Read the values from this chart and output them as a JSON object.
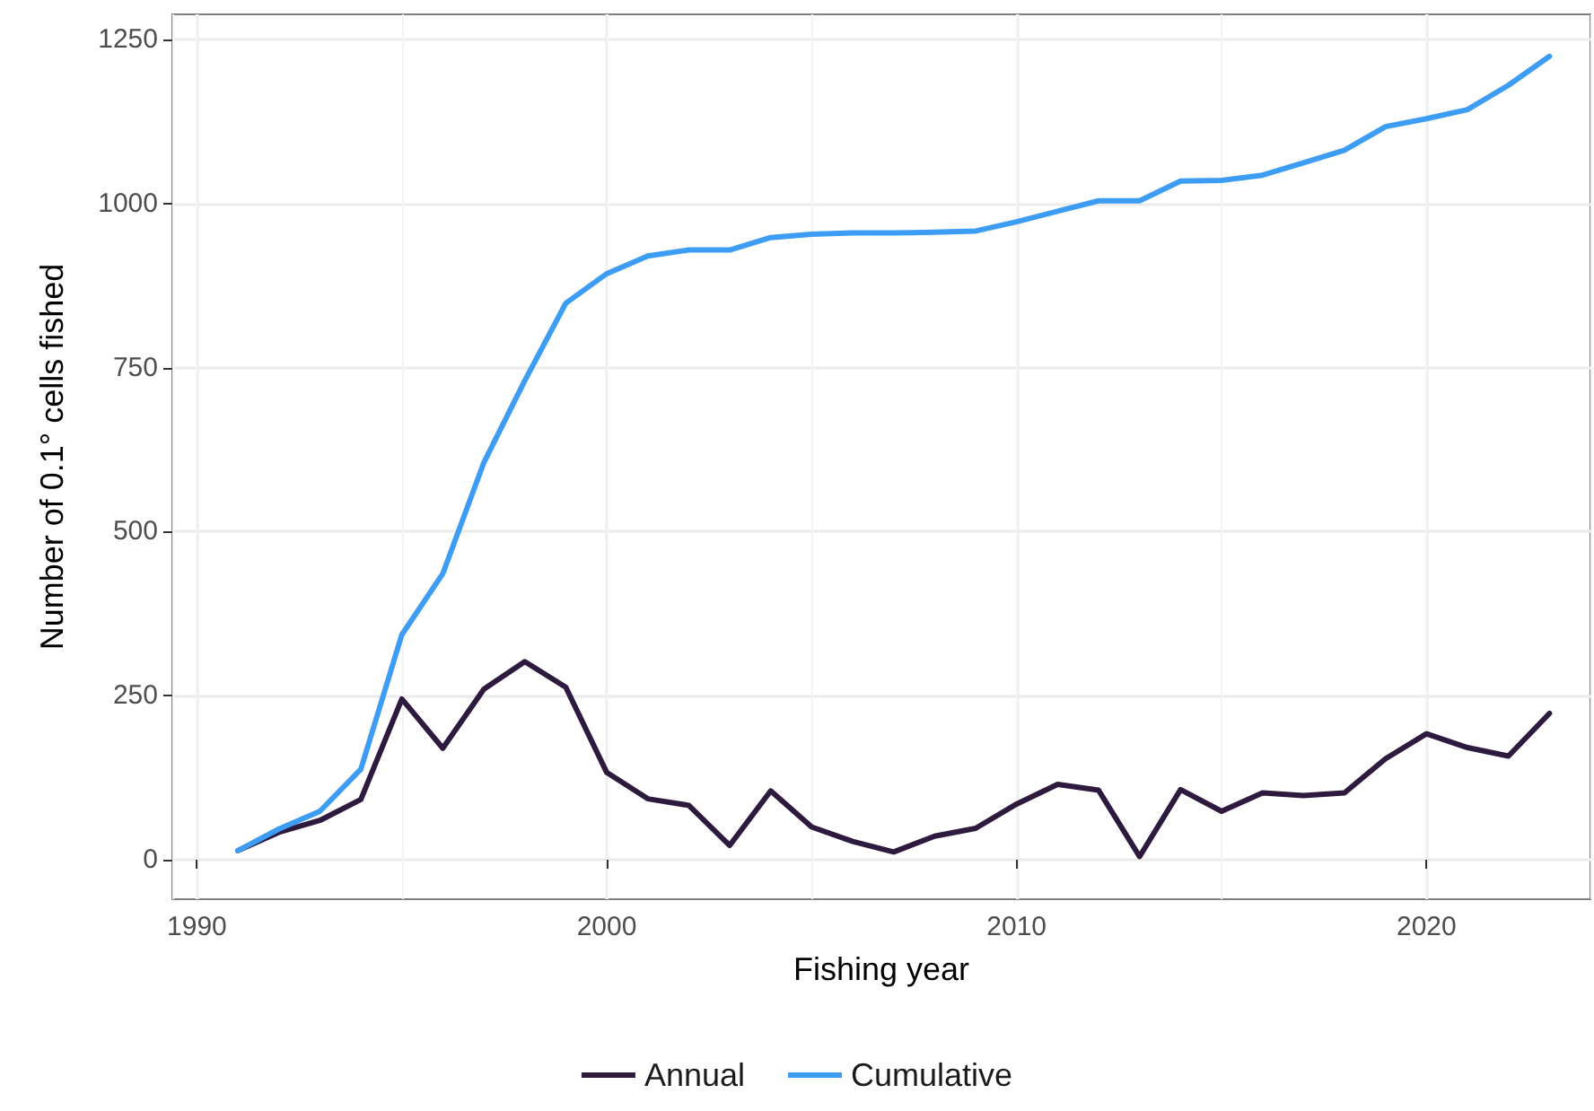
{
  "chart_data": {
    "type": "line",
    "xlabel": "Fishing year",
    "ylabel": "Number of 0.1° cells fished",
    "x": [
      1991,
      1992,
      1993,
      1994,
      1995,
      1996,
      1997,
      1998,
      1999,
      2000,
      2001,
      2002,
      2003,
      2004,
      2005,
      2006,
      2007,
      2008,
      2009,
      2010,
      2011,
      2012,
      2013,
      2014,
      2015,
      2016,
      2017,
      2018,
      2019,
      2020,
      2021,
      2022,
      2023
    ],
    "series": [
      {
        "name": "Annual",
        "color": "#2d1a3e",
        "values": [
          14,
          42,
          60,
          92,
          245,
          170,
          260,
          302,
          263,
          133,
          93,
          83,
          22,
          105,
          50,
          28,
          12,
          36,
          48,
          85,
          115,
          106,
          5,
          107,
          74,
          102,
          98,
          102,
          154,
          192,
          171,
          158,
          223
        ]
      },
      {
        "name": "Cumulative",
        "color": "#3d9df5",
        "values": [
          14,
          47,
          74,
          138,
          343,
          436,
          605,
          730,
          848,
          893,
          920,
          929,
          929,
          948,
          953,
          955,
          955,
          956,
          958,
          972,
          988,
          1004,
          1004,
          1034,
          1035,
          1043,
          1062,
          1081,
          1117,
          1129,
          1143,
          1180,
          1224
        ]
      }
    ],
    "xlim": [
      1989.4,
      2024
    ],
    "xticks": [
      1990,
      2000,
      2010,
      2020
    ],
    "ylim": [
      -60,
      1288
    ],
    "yticks": [
      0,
      250,
      500,
      750,
      1000,
      1250
    ],
    "grid": true,
    "legend": "bottom",
    "marker": "none",
    "line_style": "solid"
  }
}
